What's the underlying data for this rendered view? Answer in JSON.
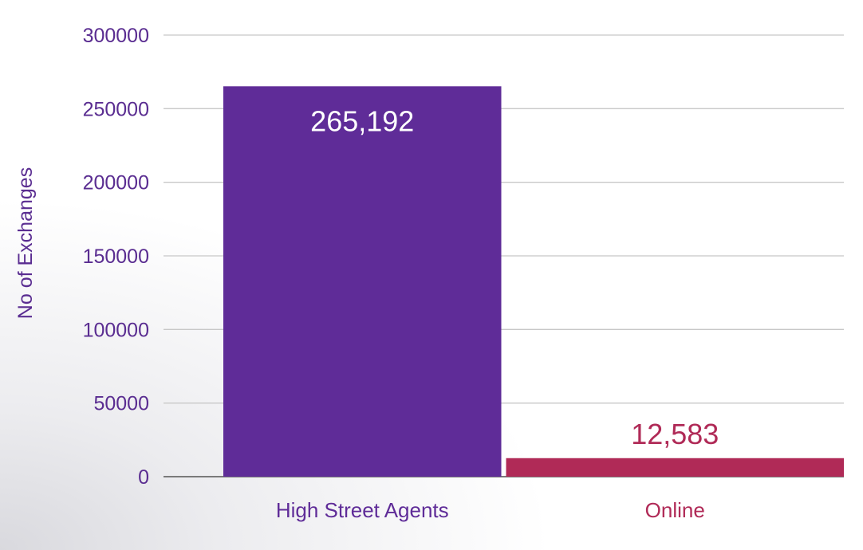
{
  "colors": {
    "axis_text": "#5a2d91",
    "grid": "#c8c8c8",
    "baseline": "#7a7a7a"
  },
  "chart_data": {
    "type": "bar",
    "title": "",
    "xlabel": "",
    "ylabel": "No of Exchanges",
    "ylim": [
      0,
      300000
    ],
    "yticks": [
      0,
      50000,
      100000,
      150000,
      200000,
      250000,
      300000
    ],
    "ytick_labels": [
      "0",
      "50000",
      "100000",
      "150000",
      "200000",
      "250000",
      "300000"
    ],
    "grid": true,
    "categories": [
      "High Street Agents",
      "Online"
    ],
    "values": [
      265192,
      12583
    ],
    "data_labels": [
      "265,192",
      "12,583"
    ],
    "bar_colors": [
      "#5f2c98",
      "#b02a57"
    ],
    "category_label_colors": [
      "#5f2c98",
      "#b02a57"
    ],
    "data_label_colors": [
      "#ffffff",
      "#b02a57"
    ]
  }
}
